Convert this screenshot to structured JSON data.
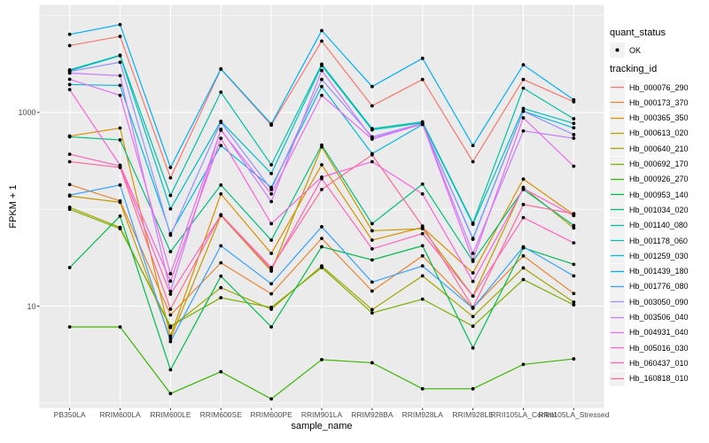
{
  "chart_data": {
    "type": "line",
    "title": "",
    "xlabel": "sample_name",
    "ylabel": "FPKM + 1",
    "y_scale": "log10",
    "y_ticks": [
      10,
      1000
    ],
    "y_minor_ticks": [
      1,
      100,
      10000
    ],
    "ylim": [
      0.85,
      13000
    ],
    "grid": "on",
    "panel_color": "#EBEBEB",
    "grid_color": "#FFFFFF",
    "point_color": "#000000",
    "tick_label_color": "#4D4D4D",
    "categories": [
      "PB350LA",
      "RRIM600LA",
      "RRIM600LE",
      "RRIM600SE",
      "RRIM600PE",
      "RRIM901LA",
      "RRIM928BA",
      "RRIM928LA",
      "RRIM928LE",
      "RRII105LA_Control",
      "RRII105LA_Stressed"
    ],
    "series": [
      {
        "name": "Hb_000076_290",
        "color": "#F8766D",
        "values": [
          4900,
          6100,
          211,
          2800,
          740,
          5450,
          1170,
          2190,
          310,
          2190,
          1290
        ]
      },
      {
        "name": "Hb_000173_370",
        "color": "#EA8331",
        "values": [
          180,
          122,
          8.1,
          28,
          13.4,
          50,
          14.3,
          33,
          9.6,
          33,
          13.5
        ]
      },
      {
        "name": "Hb_000365_350",
        "color": "#D89000",
        "values": [
          570,
          690,
          4.9,
          144,
          35,
          288,
          48,
          65,
          22,
          205,
          88
        ]
      },
      {
        "name": "Hb_000613_020",
        "color": "#C09B00",
        "values": [
          137,
          118,
          4.6,
          86,
          23,
          440,
          60,
          63,
          12.7,
          168,
          64
        ]
      },
      {
        "name": "Hb_000640_210",
        "color": "#A3A500",
        "values": [
          105,
          65,
          6.0,
          15.5,
          9.3,
          26,
          9.2,
          20.5,
          7.8,
          24.8,
          11
        ]
      },
      {
        "name": "Hb_000692_170",
        "color": "#7CAE00",
        "values": [
          100,
          63,
          6.2,
          12.2,
          9.7,
          25,
          8.5,
          11.8,
          6.2,
          18.8,
          10.3
        ]
      },
      {
        "name": "Hb_000926_270",
        "color": "#39B600",
        "values": [
          6.1,
          6.1,
          1.25,
          2.1,
          1.1,
          2.8,
          2.6,
          1.4,
          1.4,
          2.5,
          2.85
        ]
      },
      {
        "name": "Hb_000953_140",
        "color": "#00BB4E",
        "values": [
          25,
          85,
          2.2,
          20.4,
          6.1,
          41,
          30,
          42,
          3.7,
          40,
          27
        ]
      },
      {
        "name": "Hb_001034_020",
        "color": "#00BF7D",
        "values": [
          560,
          520,
          36.5,
          178,
          48,
          460,
          71,
          182,
          29,
          160,
          68
        ]
      },
      {
        "name": "Hb_001140_080",
        "color": "#00C1A3",
        "values": [
          2750,
          3900,
          139,
          1620,
          288,
          3150,
          680,
          800,
          72,
          1780,
          860
        ]
      },
      {
        "name": "Hb_001178_060",
        "color": "#00BFC4",
        "values": [
          2700,
          3850,
          101,
          810,
          234,
          3050,
          660,
          780,
          70,
          1100,
          770
        ]
      },
      {
        "name": "Hb_001259_030",
        "color": "#00BAE0",
        "values": [
          1940,
          1900,
          56,
          455,
          168,
          1850,
          375,
          750,
          50,
          1030,
          693
        ]
      },
      {
        "name": "Hb_001439_180",
        "color": "#00B0F6",
        "values": [
          6400,
          8070,
          270,
          2820,
          760,
          7000,
          1850,
          3620,
          455,
          3100,
          1350
        ]
      },
      {
        "name": "Hb_001776_080",
        "color": "#35A2FF",
        "values": [
          140,
          178,
          4.3,
          42,
          17,
          66,
          17.7,
          26,
          9.5,
          41,
          20.5
        ]
      },
      {
        "name": "Hb_003050_090",
        "color": "#9590FF",
        "values": [
          2650,
          3300,
          54,
          790,
          160,
          2190,
          560,
          770,
          49,
          1030,
          590
        ]
      },
      {
        "name": "Hb_003506_040",
        "color": "#C77CFF",
        "values": [
          2550,
          2400,
          14.2,
          670,
          120,
          2710,
          540,
          765,
          35,
          645,
          541
        ]
      },
      {
        "name": "Hb_004931_040",
        "color": "#E76BF3",
        "values": [
          2200,
          1500,
          21.6,
          655,
          144,
          1500,
          530,
          760,
          30,
          880,
          278
        ]
      },
      {
        "name": "Hb_005016_030",
        "color": "#FA62DB",
        "values": [
          1720,
          285,
          18.1,
          540,
          71,
          215,
          310,
          144,
          18,
          164,
          86
        ]
      },
      {
        "name": "Hb_060437_010",
        "color": "#FF62BC",
        "values": [
          370,
          280,
          13.3,
          87,
          24,
          207,
          39,
          56,
          12.7,
          82,
          45
        ]
      },
      {
        "name": "Hb_160818_010",
        "color": "#FF6A98",
        "values": [
          310,
          270,
          9.3,
          88,
          25,
          160,
          365,
          67,
          9.7,
          112,
          90
        ]
      }
    ],
    "legend": {
      "position": "right",
      "quant_title": "quant_status",
      "quant_ok_label": "OK",
      "series_title": "tracking_id"
    }
  }
}
